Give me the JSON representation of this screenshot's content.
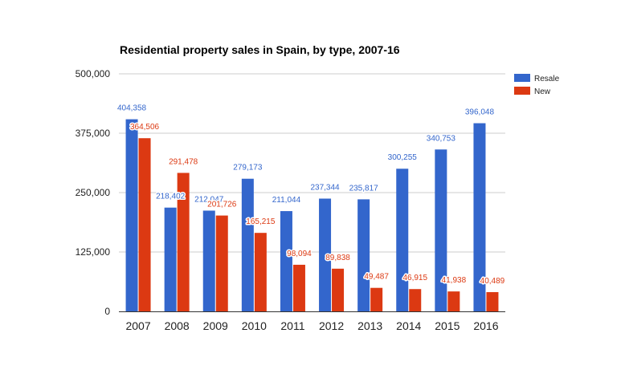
{
  "chart_data": {
    "type": "bar",
    "title": "Residential property sales in Spain, by type, 2007-16",
    "xlabel": "",
    "ylabel": "",
    "categories": [
      "2007",
      "2008",
      "2009",
      "2010",
      "2011",
      "2012",
      "2013",
      "2014",
      "2015",
      "2016"
    ],
    "series": [
      {
        "name": "Resale",
        "color": "#3366cc",
        "values": [
          404358,
          218402,
          212047,
          279173,
          211044,
          237344,
          235817,
          300255,
          340753,
          396048
        ],
        "labels": [
          "404,358",
          "218,402",
          "212,047",
          "279,173",
          "211,044",
          "237,344",
          "235,817",
          "300,255",
          "340,753",
          "396,048"
        ]
      },
      {
        "name": "New",
        "color": "#dc3912",
        "values": [
          364506,
          291478,
          201726,
          165215,
          98094,
          89838,
          49487,
          46915,
          41938,
          40489
        ],
        "labels": [
          "364,506",
          "291,478",
          "201,726",
          "165,215",
          "98,094",
          "89,838",
          "49,487",
          "46,915",
          "41,938",
          "40,489"
        ]
      }
    ],
    "ylim": [
      0,
      500000
    ],
    "yticks": [
      0,
      125000,
      250000,
      375000,
      500000
    ],
    "ytick_labels": [
      "0",
      "125,000",
      "250,000",
      "375,000",
      "500,000"
    ],
    "grid": true,
    "legend_position": "right",
    "data_labels": true
  }
}
